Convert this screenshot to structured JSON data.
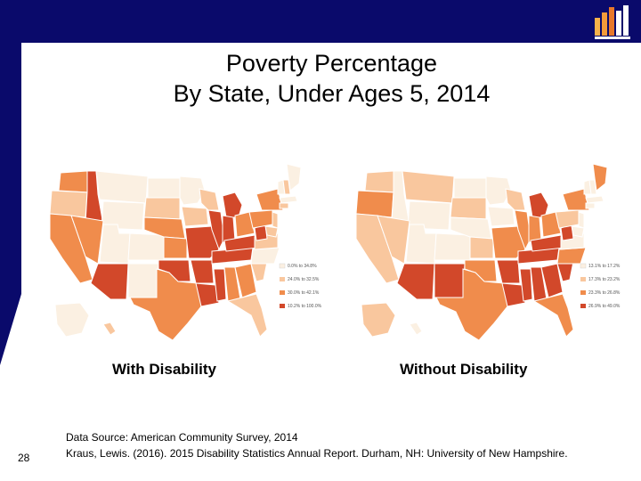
{
  "title": {
    "line1": "Poverty Percentage",
    "line2": "By State, Under Ages 5, 2014"
  },
  "colors": {
    "frame": "#0a0a6b",
    "bin1": "#fbf0e2",
    "bin2": "#f9c79e",
    "bin3": "#f08c4c",
    "bin4": "#d2482a",
    "border": "#ffffff"
  },
  "maps": [
    {
      "caption": "With Disability",
      "legend": [
        "0.0% to 34.8%",
        "24.0% to 32.5%",
        "30.0% to 42.1%",
        "10.2% to 100.0%"
      ]
    },
    {
      "caption": "Without Disability",
      "legend": [
        "13.1% to 17.2%",
        "17.3% to 23.2%",
        "23.3% to 26.8%",
        "26.9% to 49.0%"
      ]
    }
  ],
  "source": {
    "line1": "Data Source: American Community Survey, 2014",
    "line2": "Kraus, Lewis. (2016). 2015 Disability Statistics Annual Report. Durham, NH: University of New Hampshire."
  },
  "page_number": "28",
  "icons": [
    "bar-chart-logo-icon"
  ]
}
